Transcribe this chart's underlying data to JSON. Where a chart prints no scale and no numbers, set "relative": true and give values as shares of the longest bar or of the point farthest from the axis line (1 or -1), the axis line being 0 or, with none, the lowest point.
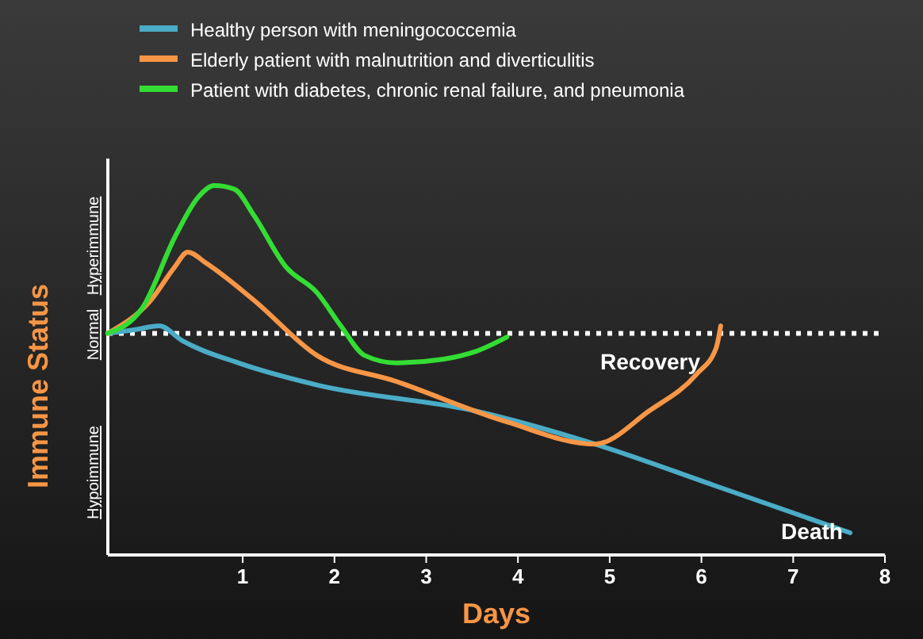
{
  "chart_data": {
    "type": "line",
    "relative": true,
    "xlabel": "Days",
    "ylabel": "Immune Status",
    "xlim": [
      -0.47,
      8
    ],
    "xticks": [
      1,
      2,
      3,
      4,
      5,
      6,
      7,
      8
    ],
    "legend": "top left",
    "grid": false,
    "marker": "none",
    "line_style": "solid",
    "series": [
      {
        "name": "Healthy person with meningococcemia",
        "color": "#4bacc6",
        "x": [
          -0.47,
          -0.17,
          0.09,
          0.34,
          0.95,
          1.81,
          3.53,
          4.84,
          6.12,
          7.62
        ],
        "values": [
          0.6,
          0.61,
          0.62,
          0.58,
          0.52,
          0.46,
          0.39,
          0.3,
          0.19,
          0.06
        ]
      },
      {
        "name": "Elderly patient with malnutrition and diverticulitis",
        "color": "#f79646",
        "x": [
          -0.47,
          0,
          0.26,
          0.4,
          0.6,
          1.12,
          1.81,
          2.67,
          3.88,
          4.84,
          5.43,
          5.95,
          6.16,
          6.21
        ],
        "values": [
          0.6,
          0.69,
          0.78,
          0.82,
          0.79,
          0.69,
          0.54,
          0.47,
          0.36,
          0.3,
          0.39,
          0.49,
          0.56,
          0.62
        ]
      },
      {
        "name": "Patient with diabetes, chronic renal failure, and pneumonia",
        "color": "#33dd33",
        "x": [
          -0.47,
          -0.09,
          0.26,
          0.52,
          0.69,
          0.91,
          1.12,
          1.47,
          1.81,
          2.07,
          2.33,
          2.67,
          3.19,
          3.53,
          3.88
        ],
        "values": [
          0.6,
          0.67,
          0.86,
          0.97,
          1,
          0.99,
          0.92,
          0.78,
          0.71,
          0.62,
          0.54,
          0.52,
          0.53,
          0.55,
          0.59
        ]
      }
    ],
    "ref_lines": [
      {
        "axis": "y",
        "value": 0.6,
        "label": null,
        "color": "#ffffff",
        "line_style": "dotted"
      }
    ],
    "annotations": [
      "Hyperimmune",
      "Normal",
      "Hypoimmune",
      "Recovery",
      "Death"
    ]
  }
}
